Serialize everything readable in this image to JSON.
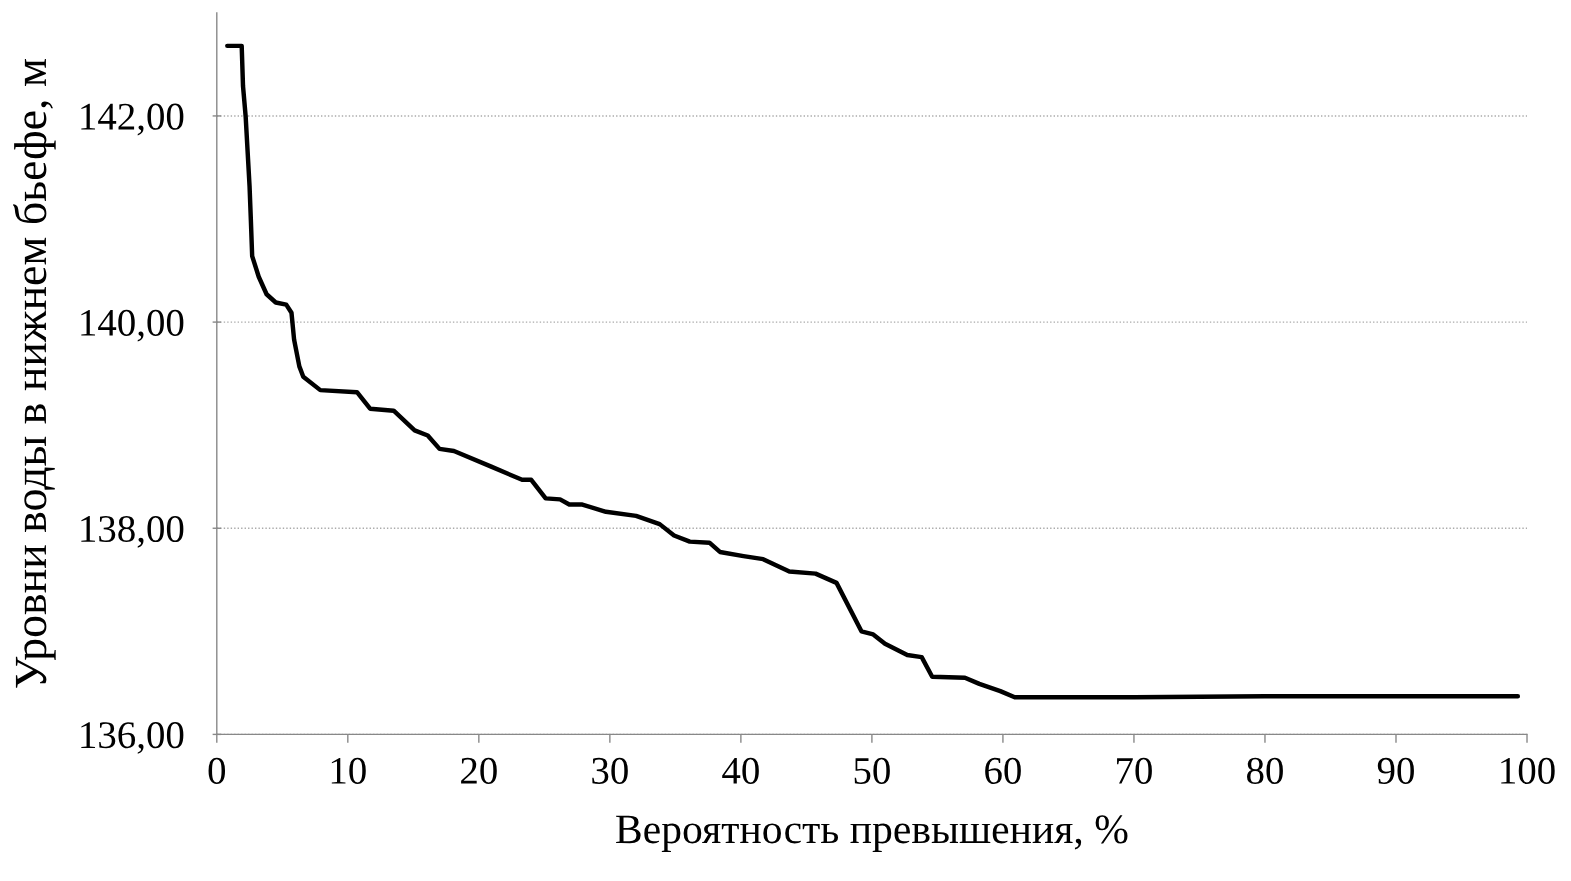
{
  "chart_data": {
    "type": "line",
    "xlabel": "Вероятность превышения, %",
    "ylabel": "Уровни воды в нижнем бьефе, м",
    "x": [
      0.8,
      1.9,
      2.0,
      2.2,
      2.5,
      2.6,
      2.7,
      3.2,
      3.8,
      4.5,
      5.3,
      5.7,
      5.9,
      6.3,
      6.6,
      7.9,
      10.7,
      11.7,
      13.5,
      15.1,
      16.1,
      17.0,
      18.1,
      20.9,
      23.3,
      24.0,
      25.1,
      26.2,
      26.9,
      27.9,
      29.7,
      32.0,
      33.8,
      34.9,
      36.1,
      37.6,
      38.4,
      40.2,
      41.7,
      43.7,
      45.7,
      47.3,
      49.2,
      50.1,
      51.0,
      52.7,
      53.8,
      54.6,
      57.1,
      58.2,
      59.8,
      60.9,
      70,
      80,
      90,
      99.3
    ],
    "series": [
      {
        "color": "#000000",
        "values": [
          142.68,
          142.68,
          142.29,
          142.0,
          141.32,
          140.99,
          140.64,
          140.44,
          140.27,
          140.19,
          140.17,
          140.09,
          139.83,
          139.57,
          139.47,
          139.34,
          139.32,
          139.16,
          139.14,
          138.95,
          138.9,
          138.77,
          138.75,
          138.6,
          138.47,
          138.47,
          138.29,
          138.28,
          138.23,
          138.23,
          138.16,
          138.12,
          138.04,
          137.93,
          137.87,
          137.86,
          137.77,
          137.73,
          137.7,
          137.58,
          137.56,
          137.47,
          137.0,
          136.97,
          136.88,
          136.77,
          136.75,
          136.56,
          136.55,
          136.49,
          136.42,
          136.36,
          136.36,
          136.37,
          136.37,
          136.37
        ]
      }
    ],
    "xlim": [
      0,
      100
    ],
    "xticks": [
      0,
      10,
      20,
      30,
      40,
      50,
      60,
      70,
      80,
      90,
      100
    ],
    "ylim": [
      136,
      143
    ],
    "yticks": [
      {
        "value": 136,
        "label": "136,00"
      },
      {
        "value": 138,
        "label": "138,00"
      },
      {
        "value": 140,
        "label": "140,00"
      },
      {
        "value": 142,
        "label": "142,00"
      }
    ],
    "grid": "y",
    "marker": "none",
    "line_style": "solid"
  }
}
